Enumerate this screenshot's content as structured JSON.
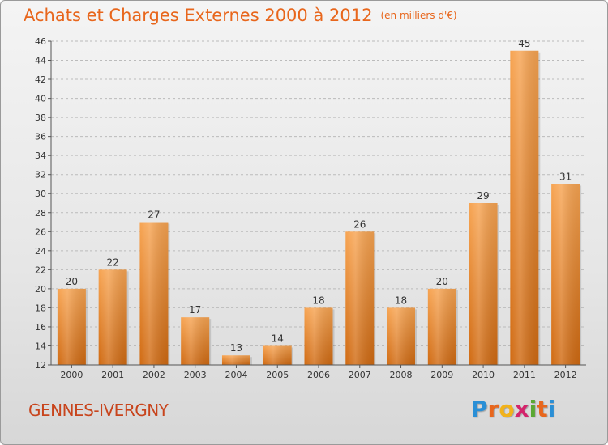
{
  "header": {
    "title": "Achats et Charges Externes 2000 à 2012",
    "subtitle": "(en milliers d'€)"
  },
  "footer": {
    "commune": "GENNES-IVERGNY",
    "logo_letters": [
      "P",
      "r",
      "o",
      "x",
      "i",
      "t",
      "i"
    ],
    "logo_colors": [
      "#2a8fd6",
      "#e8661c",
      "#f2b21a",
      "#d4246b",
      "#5aa832",
      "#e8661c",
      "#2a8fd6"
    ]
  },
  "colors": {
    "bar_top": "#f7a452",
    "bar_bottom": "#d06a12",
    "grid": "#bbbbbb",
    "title": "#e8661c"
  },
  "chart_data": {
    "type": "bar",
    "title": "Achats et Charges Externes 2000 à 2012",
    "subtitle": "(en milliers d'€)",
    "xlabel": "",
    "ylabel": "",
    "categories": [
      "2000",
      "2001",
      "2002",
      "2003",
      "2004",
      "2005",
      "2006",
      "2007",
      "2008",
      "2009",
      "2010",
      "2011",
      "2012"
    ],
    "values": [
      20,
      22,
      27,
      17,
      13,
      14,
      18,
      26,
      18,
      20,
      29,
      45,
      31
    ],
    "ylim": [
      12,
      46
    ],
    "yticks": [
      12,
      14,
      16,
      18,
      20,
      22,
      24,
      26,
      28,
      30,
      32,
      34,
      36,
      38,
      40,
      42,
      44,
      46
    ],
    "grid": "horizontal-dashed",
    "legend": "none"
  }
}
